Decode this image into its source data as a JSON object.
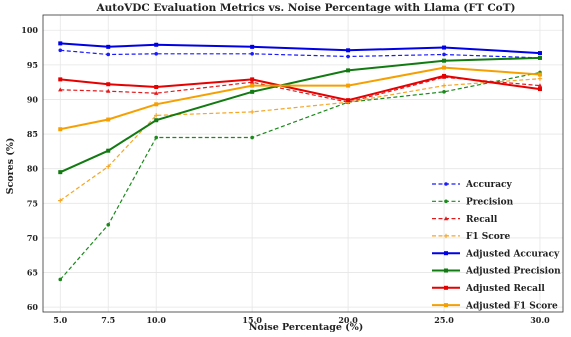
{
  "chart_data": {
    "type": "line",
    "title": "AutoVDC Evaluation Metrics vs. Noise Percentage with Llama (FT CoT)",
    "xlabel": "Noise Percentage (%)",
    "ylabel": "Scores (%)",
    "x": [
      5.0,
      7.5,
      10.0,
      15.0,
      20.0,
      25.0,
      30.0
    ],
    "x_tick_labels": [
      "5.0",
      "7.5",
      "10.0",
      "15.0",
      "20.0",
      "25.0",
      "30.0"
    ],
    "xlim": [
      4.1,
      31.2
    ],
    "ylim": [
      59.3,
      102.2
    ],
    "y_ticks": [
      60,
      65,
      70,
      75,
      80,
      85,
      90,
      95,
      100
    ],
    "grid": true,
    "legend_position": "bottom-right",
    "series": [
      {
        "name": "Accuracy",
        "color": "#1a1aff",
        "style": "dashed",
        "values": [
          97.1,
          96.5,
          96.6,
          96.6,
          96.2,
          96.5,
          96.0
        ]
      },
      {
        "name": "Precision",
        "color": "#1a8a1a",
        "style": "dashed",
        "values": [
          64.0,
          71.9,
          84.5,
          84.5,
          89.6,
          91.1,
          93.9
        ]
      },
      {
        "name": "Recall",
        "color": "#e31a1c",
        "style": "dashed",
        "values": [
          91.4,
          91.2,
          90.9,
          92.5,
          89.6,
          93.2,
          92.0
        ]
      },
      {
        "name": "F1 Score",
        "color": "#f5a623",
        "style": "dashed",
        "values": [
          75.4,
          80.3,
          87.7,
          88.2,
          89.6,
          92.0,
          93.0
        ]
      },
      {
        "name": "Adjusted Accuracy",
        "color": "#0000e6",
        "style": "solid",
        "values": [
          98.1,
          97.6,
          97.9,
          97.6,
          97.1,
          97.5,
          96.7
        ]
      },
      {
        "name": "Adjusted Precision",
        "color": "#117a11",
        "style": "solid",
        "values": [
          79.5,
          82.6,
          87.0,
          91.1,
          94.2,
          95.6,
          96.0
        ]
      },
      {
        "name": "Adjusted Recall",
        "color": "#e60000",
        "style": "solid",
        "values": [
          92.9,
          92.2,
          91.8,
          92.9,
          89.9,
          93.4,
          91.5
        ]
      },
      {
        "name": "Adjusted F1 Score",
        "color": "#f5a000",
        "style": "solid",
        "values": [
          85.7,
          87.1,
          89.3,
          92.0,
          92.0,
          94.6,
          93.6
        ]
      }
    ]
  }
}
